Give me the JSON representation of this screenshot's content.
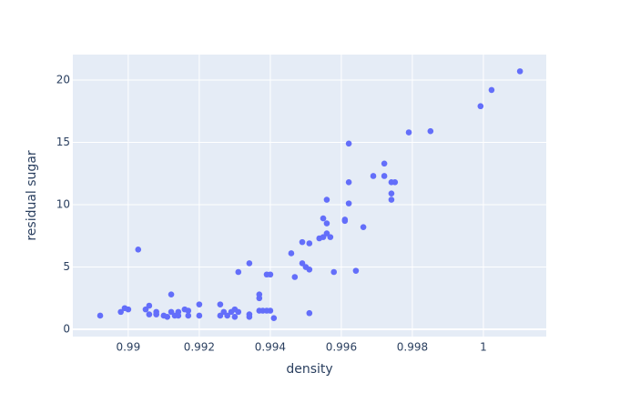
{
  "chart_data": {
    "type": "scatter",
    "x_label": "density",
    "y_label": "residual sugar",
    "color": "#636efa",
    "grid": true,
    "xlim": [
      0.98844,
      1.00177
    ],
    "ylim": [
      -0.58,
      22.04
    ],
    "xticks": [
      0.99,
      0.992,
      0.994,
      0.996,
      0.998,
      1
    ],
    "yticks": [
      0,
      5,
      10,
      15,
      20
    ],
    "x": [
      0.98921,
      0.98979,
      0.9899,
      0.99,
      0.99028,
      0.99049,
      0.99059,
      0.99059,
      0.99079,
      0.99079,
      0.991,
      0.9911,
      0.99121,
      0.99121,
      0.99131,
      0.99141,
      0.99141,
      0.99159,
      0.99169,
      0.99169,
      0.992,
      0.992,
      0.99259,
      0.99259,
      0.99269,
      0.99279,
      0.9929,
      0.993,
      0.993,
      0.9931,
      0.9931,
      0.99341,
      0.99341,
      0.99341,
      0.99369,
      0.99369,
      0.99369,
      0.99379,
      0.9939,
      0.9939,
      0.994,
      0.994,
      0.9941,
      0.99459,
      0.99469,
      0.9949,
      0.9949,
      0.995,
      0.9951,
      0.9951,
      0.9951,
      0.99538,
      0.99549,
      0.99549,
      0.99559,
      0.99559,
      0.99559,
      0.99569,
      0.99579,
      0.9961,
      0.9961,
      0.99621,
      0.99621,
      0.99621,
      0.99641,
      0.99662,
      0.9969,
      0.99721,
      0.99721,
      0.99741,
      0.99741,
      0.99741,
      0.99751,
      0.9979,
      0.99851,
      0.99992,
      1.00023,
      1.00103
    ],
    "values": [
      1.1,
      1.4,
      1.7,
      1.6,
      6.4,
      1.6,
      1.9,
      1.2,
      1.4,
      1.2,
      1.1,
      1.0,
      1.4,
      2.8,
      1.1,
      1.4,
      1.1,
      1.6,
      1.5,
      1.1,
      2.0,
      1.1,
      2.0,
      1.1,
      1.4,
      1.1,
      1.4,
      1.6,
      1.0,
      1.4,
      4.6,
      5.3,
      1.2,
      1.0,
      2.8,
      2.5,
      1.5,
      1.5,
      1.5,
      4.4,
      4.4,
      1.5,
      0.9,
      6.1,
      4.2,
      7.0,
      5.3,
      5.0,
      4.8,
      6.9,
      1.3,
      7.3,
      7.4,
      8.9,
      8.5,
      7.7,
      10.4,
      7.4,
      4.6,
      8.7,
      8.8,
      10.1,
      11.8,
      14.9,
      4.7,
      8.2,
      12.3,
      13.3,
      12.3,
      11.8,
      10.9,
      10.4,
      11.8,
      15.8,
      15.9,
      17.9,
      19.2,
      20.7
    ]
  }
}
